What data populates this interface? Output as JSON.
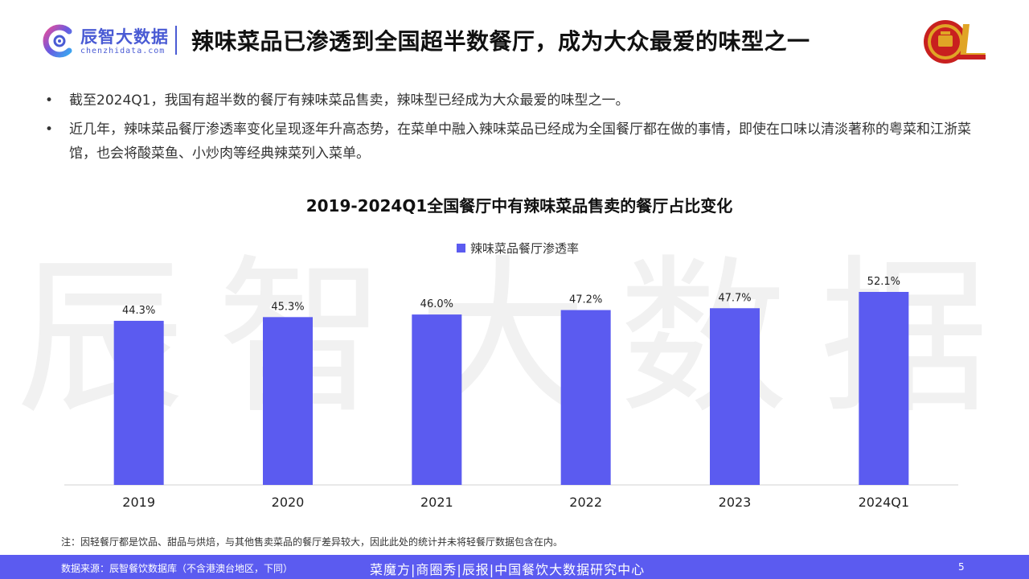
{
  "watermark": "辰智大数据",
  "header": {
    "logo_name": "辰智大数据",
    "logo_url": "chenzhidata.com",
    "title": "辣味菜品已渗透到全国超半数餐厅，成为大众最爱的味型之一"
  },
  "bullets": [
    "截至2024Q1，我国有超半数的餐厅有辣味菜品售卖，辣味型已经成为大众最爱的味型之一。",
    "近几年，辣味菜品餐厅渗透率变化呈现逐年升高态势，在菜单中融入辣味菜品已经成为全国餐厅都在做的事情，即使在口味以清淡著称的粤菜和江浙菜馆，也会将酸菜鱼、小炒肉等经典辣菜列入菜单。"
  ],
  "bullet_symbol": "•",
  "chart_data": {
    "type": "bar",
    "title": "2019-2024Q1全国餐厅中有辣味菜品售卖的餐厅占比变化",
    "categories": [
      "2019",
      "2020",
      "2021",
      "2022",
      "2023",
      "2024Q1"
    ],
    "series": [
      {
        "name": "辣味菜品餐厅渗透率",
        "values": [
          44.3,
          45.3,
          46.0,
          47.2,
          47.7,
          52.1
        ]
      }
    ],
    "value_labels": [
      "44.3%",
      "45.3%",
      "46.0%",
      "47.2%",
      "47.7%",
      "52.1%"
    ],
    "unit": "%",
    "color": "#5b5bf0",
    "legend_position": "top-center",
    "grid": false
  },
  "footnote": "注：因轻餐厅都是饮品、甜品与烘焙，与其他售卖菜品的餐厅差异较大，因此此处的统计并未将轻餐厅数据包含在内。",
  "footer": {
    "source": "数据来源：辰智餐饮数据库（不含港澳台地区，下同）",
    "center": "菜魔方|商圈秀|辰报|中国餐饮大数据研究中心",
    "page": "5"
  },
  "colors": {
    "accent": "#5b5bf0",
    "brand": "#4a5bd4",
    "badge_red": "#c8201f",
    "badge_gold": "#e0a526"
  }
}
